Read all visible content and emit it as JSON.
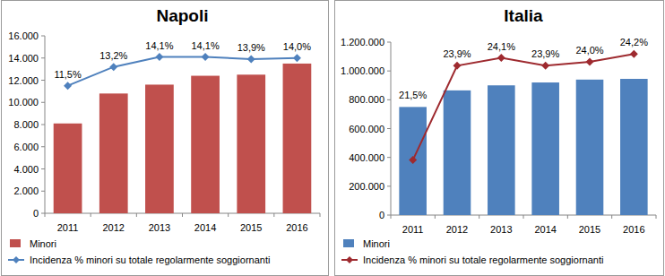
{
  "chart_data": [
    {
      "type": "bar",
      "title": "Napoli",
      "categories": [
        "2011",
        "2012",
        "2013",
        "2014",
        "2015",
        "2016"
      ],
      "series": [
        {
          "name": "Minori",
          "type": "bar",
          "color": "#c0504d",
          "values": [
            8100,
            10800,
            11600,
            12400,
            12500,
            13500
          ]
        },
        {
          "name": "Incidenza % minori su totale regolarmente soggiornanti",
          "type": "line",
          "axis": "y2",
          "color": "#4f81bd",
          "marker": "diamond",
          "data_labels": true,
          "values": [
            11.5,
            13.2,
            14.1,
            14.1,
            13.9,
            14.0
          ],
          "value_labels": [
            "11,5%",
            "13,2%",
            "14,1%",
            "14,1%",
            "13,9%",
            "14,0%"
          ]
        }
      ],
      "ylim": [
        0,
        16000
      ],
      "yticks": [
        0,
        {
          "value": 2000,
          "label": "2.000"
        },
        {
          "value": 4000,
          "label": "4.000"
        },
        {
          "value": 6000,
          "label": "6.000"
        },
        {
          "value": 8000,
          "label": "8.000"
        },
        {
          "value": 10000,
          "label": "10.000"
        },
        {
          "value": 12000,
          "label": "12.000"
        },
        {
          "value": 14000,
          "label": "14.000"
        },
        {
          "value": 16000,
          "label": "16.000"
        }
      ],
      "y2lim": [
        0,
        16
      ],
      "grid": false,
      "legend": "bottom"
    },
    {
      "type": "bar",
      "title": "Italia",
      "categories": [
        "2011",
        "2012",
        "2013",
        "2014",
        "2015",
        "2016"
      ],
      "series": [
        {
          "name": "Minori",
          "type": "bar",
          "color": "#4f81bd",
          "values": [
            750000,
            865000,
            900000,
            920000,
            940000,
            945000
          ]
        },
        {
          "name": "Incidenza % minori su totale regolarmente soggiornanti",
          "type": "line",
          "axis": "y2",
          "color": "#9e2a2f",
          "marker": "diamond",
          "data_labels": true,
          "values": [
            21.5,
            23.9,
            24.1,
            23.9,
            24.0,
            24.2
          ],
          "value_labels": [
            "21,5%",
            "23,9%",
            "24,1%",
            "23,9%",
            "24,0%",
            "24,2%"
          ]
        }
      ],
      "ylim": [
        0,
        1200000
      ],
      "yticks": [
        0,
        {
          "value": 200000,
          "label": "200.000"
        },
        {
          "value": 400000,
          "label": "400.000"
        },
        {
          "value": 600000,
          "label": "600.000"
        },
        {
          "value": 800000,
          "label": "800.000"
        },
        {
          "value": 1000000,
          "label": "1.000.000"
        },
        {
          "value": 1200000,
          "label": "1.200.000"
        }
      ],
      "y2lim": [
        20.1,
        24.5
      ],
      "grid": false,
      "legend": "bottom"
    }
  ]
}
